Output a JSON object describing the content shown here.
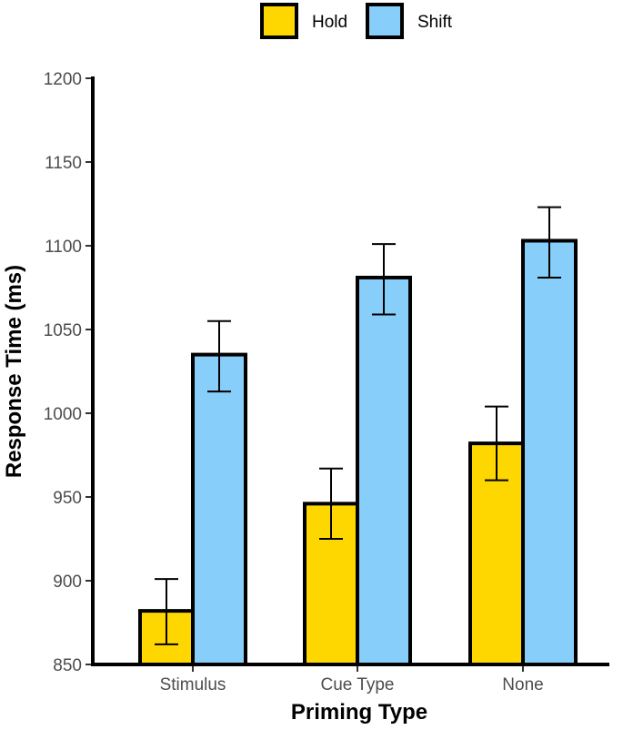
{
  "chart_data": {
    "type": "bar",
    "title": "",
    "xlabel": "Priming Type",
    "ylabel": "Response Time (ms)",
    "categories": [
      "Stimulus",
      "Cue Type",
      "None"
    ],
    "series": [
      {
        "name": "Hold",
        "color": "#FFD700",
        "values": [
          882,
          946,
          982
        ],
        "err_low": [
          862,
          925,
          960
        ],
        "err_high": [
          901,
          967,
          1004
        ]
      },
      {
        "name": "Shift",
        "color": "#87CEFA",
        "values": [
          1035,
          1081,
          1103
        ],
        "err_low": [
          1013,
          1059,
          1081
        ],
        "err_high": [
          1055,
          1101,
          1123
        ]
      }
    ],
    "ylim": [
      850,
      1200
    ],
    "yticks": [
      850,
      900,
      950,
      1000,
      1050,
      1100,
      1150,
      1200
    ],
    "legend_position": "top",
    "grid": false
  }
}
